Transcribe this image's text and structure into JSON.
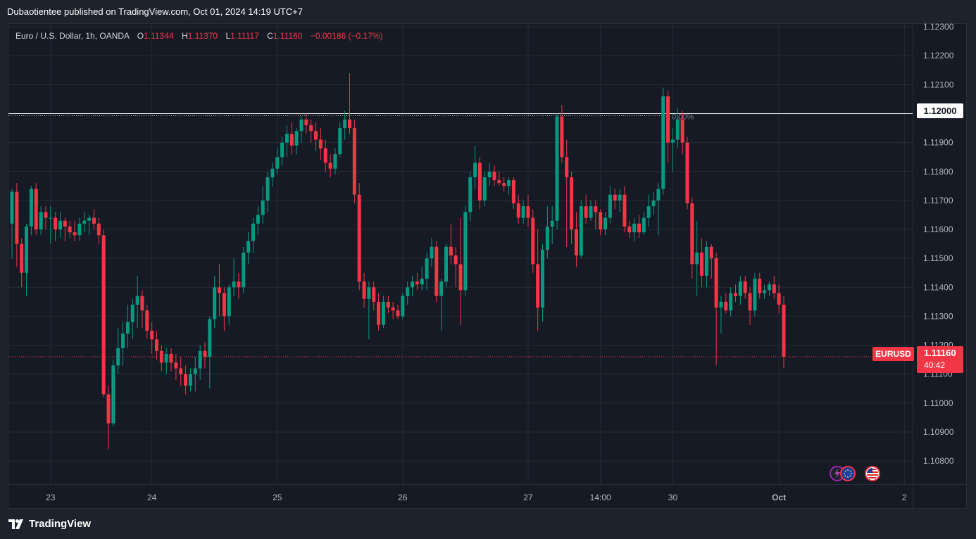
{
  "header": {
    "text": "Dubaotientee published on TradingView.com, Oct 01, 2024 14:19 UTC+7"
  },
  "legend": {
    "symbol": "Euro / U.S. Dollar, 1h, OANDA",
    "o_label": "O",
    "o": "1.11344",
    "h_label": "H",
    "h": "1.11370",
    "l_label": "L",
    "l": "1.11117",
    "c_label": "C",
    "c": "1.11160",
    "change": "−0.00186 (−0.17%)"
  },
  "price_tag": {
    "ticker": "EURUSD",
    "value": "1.11160",
    "countdown": "40:42"
  },
  "level": {
    "value": "1.12000",
    "fib_label": "0.00%"
  },
  "footer": {
    "brand": "TradingView"
  },
  "colors": {
    "up": "#089981",
    "down": "#f23645",
    "background": "#161a25",
    "grid": "#262a35",
    "axis_text": "#b2b5be"
  },
  "icons": [
    "lightning-event-icon",
    "eu-flag-icon",
    "us-flag-icon"
  ],
  "chart_data": {
    "type": "candlestick",
    "symbol": "EURUSD",
    "timeframe": "1h",
    "ylim": [
      1.1072,
      1.1231
    ],
    "y_ticks": [
      "1.12300",
      "1.12200",
      "1.12100",
      "1.11900",
      "1.11800",
      "1.11700",
      "1.11600",
      "1.11500",
      "1.11400",
      "1.11300",
      "1.11200",
      "1.11100",
      "1.11000",
      "1.10900",
      "1.10800"
    ],
    "x_ticks": [
      {
        "label": "23",
        "index": 8
      },
      {
        "label": "24",
        "index": 29
      },
      {
        "label": "25",
        "index": 55
      },
      {
        "label": "26",
        "index": 81
      },
      {
        "label": "27",
        "index": 107
      },
      {
        "label": "14:00",
        "index": 122
      },
      {
        "label": "30",
        "index": 137
      },
      {
        "label": "Oct",
        "index": 159
      },
      {
        "label": "2",
        "index": 185
      }
    ],
    "horizontal_level": 1.12,
    "last_price": 1.1116,
    "candles": [
      [
        1.1162,
        1.1174,
        1.115,
        1.1173
      ],
      [
        1.1173,
        1.1176,
        1.1147,
        1.1155
      ],
      [
        1.1155,
        1.1157,
        1.114,
        1.1145
      ],
      [
        1.1145,
        1.1162,
        1.1137,
        1.1161
      ],
      [
        1.1161,
        1.1175,
        1.1158,
        1.1174
      ],
      [
        1.1174,
        1.1176,
        1.1158,
        1.116
      ],
      [
        1.116,
        1.1168,
        1.1158,
        1.1166
      ],
      [
        1.1166,
        1.1168,
        1.116,
        1.1164
      ],
      [
        1.1164,
        1.1168,
        1.1155,
        1.1164
      ],
      [
        1.1164,
        1.1166,
        1.1156,
        1.116
      ],
      [
        1.116,
        1.1166,
        1.1157,
        1.1163
      ],
      [
        1.1163,
        1.1164,
        1.1156,
        1.1161
      ],
      [
        1.1161,
        1.1163,
        1.1157,
        1.1159
      ],
      [
        1.1159,
        1.1163,
        1.1156,
        1.1158
      ],
      [
        1.1158,
        1.1164,
        1.1156,
        1.1162
      ],
      [
        1.1162,
        1.1166,
        1.1159,
        1.1163
      ],
      [
        1.1163,
        1.1165,
        1.1158,
        1.1164
      ],
      [
        1.1164,
        1.1167,
        1.116,
        1.1162
      ],
      [
        1.1162,
        1.1164,
        1.1155,
        1.1158
      ],
      [
        1.1158,
        1.116,
        1.1102,
        1.1103
      ],
      [
        1.1103,
        1.1106,
        1.1084,
        1.1093
      ],
      [
        1.1093,
        1.1115,
        1.1092,
        1.1113
      ],
      [
        1.1113,
        1.1126,
        1.111,
        1.1119
      ],
      [
        1.1119,
        1.1128,
        1.1113,
        1.1124
      ],
      [
        1.1124,
        1.1134,
        1.1119,
        1.1128
      ],
      [
        1.1128,
        1.1136,
        1.1122,
        1.1134
      ],
      [
        1.1134,
        1.1144,
        1.1126,
        1.1137
      ],
      [
        1.1137,
        1.1139,
        1.1126,
        1.1132
      ],
      [
        1.1132,
        1.1134,
        1.1122,
        1.1125
      ],
      [
        1.1125,
        1.1128,
        1.1117,
        1.1122
      ],
      [
        1.1122,
        1.1125,
        1.1115,
        1.1118
      ],
      [
        1.1118,
        1.112,
        1.1111,
        1.1114
      ],
      [
        1.1114,
        1.1119,
        1.111,
        1.1117
      ],
      [
        1.1117,
        1.1119,
        1.1111,
        1.1114
      ],
      [
        1.1114,
        1.1117,
        1.1108,
        1.1112
      ],
      [
        1.1112,
        1.1116,
        1.1106,
        1.111
      ],
      [
        1.111,
        1.1113,
        1.1103,
        1.1106
      ],
      [
        1.1106,
        1.1112,
        1.1104,
        1.111
      ],
      [
        1.111,
        1.1116,
        1.1104,
        1.1112
      ],
      [
        1.1112,
        1.112,
        1.1108,
        1.1118
      ],
      [
        1.1118,
        1.1121,
        1.1112,
        1.1116
      ],
      [
        1.1116,
        1.113,
        1.1105,
        1.1129
      ],
      [
        1.1129,
        1.1144,
        1.1126,
        1.114
      ],
      [
        1.114,
        1.1148,
        1.113,
        1.1138
      ],
      [
        1.1138,
        1.114,
        1.1125,
        1.113
      ],
      [
        1.113,
        1.1141,
        1.1127,
        1.114
      ],
      [
        1.114,
        1.115,
        1.1137,
        1.1142
      ],
      [
        1.1142,
        1.1145,
        1.1136,
        1.114
      ],
      [
        1.114,
        1.1154,
        1.1138,
        1.1152
      ],
      [
        1.1152,
        1.1159,
        1.1148,
        1.1156
      ],
      [
        1.1156,
        1.1164,
        1.1152,
        1.1162
      ],
      [
        1.1162,
        1.1168,
        1.1158,
        1.1165
      ],
      [
        1.1165,
        1.1175,
        1.1162,
        1.117
      ],
      [
        1.117,
        1.118,
        1.1166,
        1.1178
      ],
      [
        1.1178,
        1.1183,
        1.1175,
        1.1181
      ],
      [
        1.1181,
        1.1188,
        1.1179,
        1.1185
      ],
      [
        1.1185,
        1.1192,
        1.1182,
        1.119
      ],
      [
        1.119,
        1.1196,
        1.1185,
        1.1193
      ],
      [
        1.1193,
        1.1197,
        1.1186,
        1.1189
      ],
      [
        1.1189,
        1.1195,
        1.1186,
        1.1194
      ],
      [
        1.1194,
        1.1199,
        1.119,
        1.1198
      ],
      [
        1.1198,
        1.12,
        1.1193,
        1.1196
      ],
      [
        1.1196,
        1.1198,
        1.119,
        1.1194
      ],
      [
        1.1194,
        1.1197,
        1.1187,
        1.1191
      ],
      [
        1.1191,
        1.1195,
        1.1184,
        1.1188
      ],
      [
        1.1188,
        1.1191,
        1.118,
        1.1183
      ],
      [
        1.1183,
        1.1186,
        1.1178,
        1.1181
      ],
      [
        1.1181,
        1.1188,
        1.1179,
        1.1186
      ],
      [
        1.1186,
        1.1197,
        1.1185,
        1.1195
      ],
      [
        1.1195,
        1.1201,
        1.1191,
        1.1198
      ],
      [
        1.1198,
        1.1214,
        1.1193,
        1.1195
      ],
      [
        1.1195,
        1.1198,
        1.1169,
        1.1172
      ],
      [
        1.1172,
        1.1176,
        1.1139,
        1.1142
      ],
      [
        1.1142,
        1.1145,
        1.1133,
        1.1136
      ],
      [
        1.1136,
        1.1142,
        1.1122,
        1.114
      ],
      [
        1.114,
        1.1142,
        1.1132,
        1.1135
      ],
      [
        1.1135,
        1.1138,
        1.1125,
        1.1127
      ],
      [
        1.1127,
        1.1137,
        1.1126,
        1.1135
      ],
      [
        1.1135,
        1.1137,
        1.1131,
        1.1133
      ],
      [
        1.1133,
        1.1135,
        1.1129,
        1.1132
      ],
      [
        1.1132,
        1.1134,
        1.1129,
        1.113
      ],
      [
        1.113,
        1.1138,
        1.1129,
        1.1137
      ],
      [
        1.1137,
        1.1142,
        1.1134,
        1.114
      ],
      [
        1.114,
        1.1144,
        1.1137,
        1.1142
      ],
      [
        1.1142,
        1.1145,
        1.1139,
        1.1141
      ],
      [
        1.1141,
        1.1147,
        1.1139,
        1.1143
      ],
      [
        1.1143,
        1.1152,
        1.1139,
        1.115
      ],
      [
        1.115,
        1.1157,
        1.1147,
        1.1154
      ],
      [
        1.1154,
        1.1156,
        1.1135,
        1.1137
      ],
      [
        1.1137,
        1.1143,
        1.1125,
        1.1142
      ],
      [
        1.1142,
        1.1155,
        1.114,
        1.1154
      ],
      [
        1.1154,
        1.1162,
        1.1148,
        1.1151
      ],
      [
        1.1151,
        1.1154,
        1.114,
        1.1148
      ],
      [
        1.1148,
        1.1164,
        1.1127,
        1.1139
      ],
      [
        1.1139,
        1.1168,
        1.1137,
        1.1166
      ],
      [
        1.1166,
        1.118,
        1.1163,
        1.1178
      ],
      [
        1.1178,
        1.1189,
        1.1174,
        1.1183
      ],
      [
        1.1183,
        1.1185,
        1.1167,
        1.117
      ],
      [
        1.117,
        1.118,
        1.1168,
        1.1178
      ],
      [
        1.1178,
        1.1183,
        1.1175,
        1.118
      ],
      [
        1.118,
        1.1182,
        1.1175,
        1.1177
      ],
      [
        1.1177,
        1.118,
        1.1175,
        1.1176
      ],
      [
        1.1176,
        1.1178,
        1.1173,
        1.1175
      ],
      [
        1.1175,
        1.1178,
        1.1172,
        1.1177
      ],
      [
        1.1177,
        1.1178,
        1.1167,
        1.1169
      ],
      [
        1.1169,
        1.1172,
        1.1162,
        1.1164
      ],
      [
        1.1164,
        1.117,
        1.1162,
        1.1168
      ],
      [
        1.1168,
        1.1172,
        1.1161,
        1.1164
      ],
      [
        1.1164,
        1.1167,
        1.1145,
        1.1148
      ],
      [
        1.1148,
        1.116,
        1.1125,
        1.1133
      ],
      [
        1.1133,
        1.1155,
        1.1128,
        1.1153
      ],
      [
        1.1153,
        1.1168,
        1.115,
        1.1161
      ],
      [
        1.1161,
        1.1168,
        1.1155,
        1.1163
      ],
      [
        1.1163,
        1.12,
        1.116,
        1.1199
      ],
      [
        1.1199,
        1.1203,
        1.1183,
        1.1185
      ],
      [
        1.1185,
        1.1191,
        1.1154,
        1.1178
      ],
      [
        1.1178,
        1.118,
        1.1155,
        1.116
      ],
      [
        1.116,
        1.1166,
        1.1147,
        1.1151
      ],
      [
        1.1151,
        1.117,
        1.115,
        1.1168
      ],
      [
        1.1168,
        1.1172,
        1.1162,
        1.1164
      ],
      [
        1.1164,
        1.117,
        1.1163,
        1.1168
      ],
      [
        1.1168,
        1.117,
        1.116,
        1.1166
      ],
      [
        1.1166,
        1.1167,
        1.1158,
        1.116
      ],
      [
        1.116,
        1.1166,
        1.1158,
        1.1164
      ],
      [
        1.1164,
        1.1175,
        1.1162,
        1.1172
      ],
      [
        1.1172,
        1.1174,
        1.1167,
        1.117
      ],
      [
        1.117,
        1.1174,
        1.1166,
        1.1172
      ],
      [
        1.1172,
        1.1175,
        1.1159,
        1.1161
      ],
      [
        1.1161,
        1.1163,
        1.1157,
        1.1159
      ],
      [
        1.1159,
        1.1164,
        1.1156,
        1.1162
      ],
      [
        1.1162,
        1.1165,
        1.1157,
        1.1159
      ],
      [
        1.1159,
        1.1166,
        1.1158,
        1.1164
      ],
      [
        1.1164,
        1.1172,
        1.1161,
        1.1168
      ],
      [
        1.1168,
        1.1173,
        1.1165,
        1.117
      ],
      [
        1.117,
        1.1176,
        1.1158,
        1.1174
      ],
      [
        1.1174,
        1.1209,
        1.1172,
        1.1206
      ],
      [
        1.1206,
        1.1208,
        1.1183,
        1.119
      ],
      [
        1.119,
        1.1195,
        1.118,
        1.1191
      ],
      [
        1.1191,
        1.1202,
        1.1188,
        1.1198
      ],
      [
        1.1198,
        1.1201,
        1.1186,
        1.119
      ],
      [
        1.119,
        1.1192,
        1.1167,
        1.1169
      ],
      [
        1.1169,
        1.1171,
        1.1143,
        1.1148
      ],
      [
        1.1148,
        1.1163,
        1.1137,
        1.1152
      ],
      [
        1.1152,
        1.1157,
        1.114,
        1.1144
      ],
      [
        1.1144,
        1.1156,
        1.114,
        1.1154
      ],
      [
        1.1154,
        1.1155,
        1.1143,
        1.115
      ],
      [
        1.115,
        1.1152,
        1.1113,
        1.1133
      ],
      [
        1.1133,
        1.1137,
        1.1124,
        1.1135
      ],
      [
        1.1135,
        1.1138,
        1.1131,
        1.1132
      ],
      [
        1.1132,
        1.114,
        1.113,
        1.1138
      ],
      [
        1.1138,
        1.1141,
        1.1135,
        1.1137
      ],
      [
        1.1137,
        1.1144,
        1.1134,
        1.1142
      ],
      [
        1.1142,
        1.1144,
        1.1136,
        1.1138
      ],
      [
        1.1138,
        1.114,
        1.1127,
        1.1132
      ],
      [
        1.1132,
        1.1145,
        1.113,
        1.1143
      ],
      [
        1.1143,
        1.1145,
        1.1136,
        1.1138
      ],
      [
        1.1138,
        1.1141,
        1.1136,
        1.1139
      ],
      [
        1.1139,
        1.1142,
        1.1137,
        1.1141
      ],
      [
        1.1141,
        1.1144,
        1.1136,
        1.1138
      ],
      [
        1.1138,
        1.1141,
        1.1131,
        1.1134
      ],
      [
        1.1134,
        1.1137,
        1.1112,
        1.1116
      ]
    ]
  }
}
